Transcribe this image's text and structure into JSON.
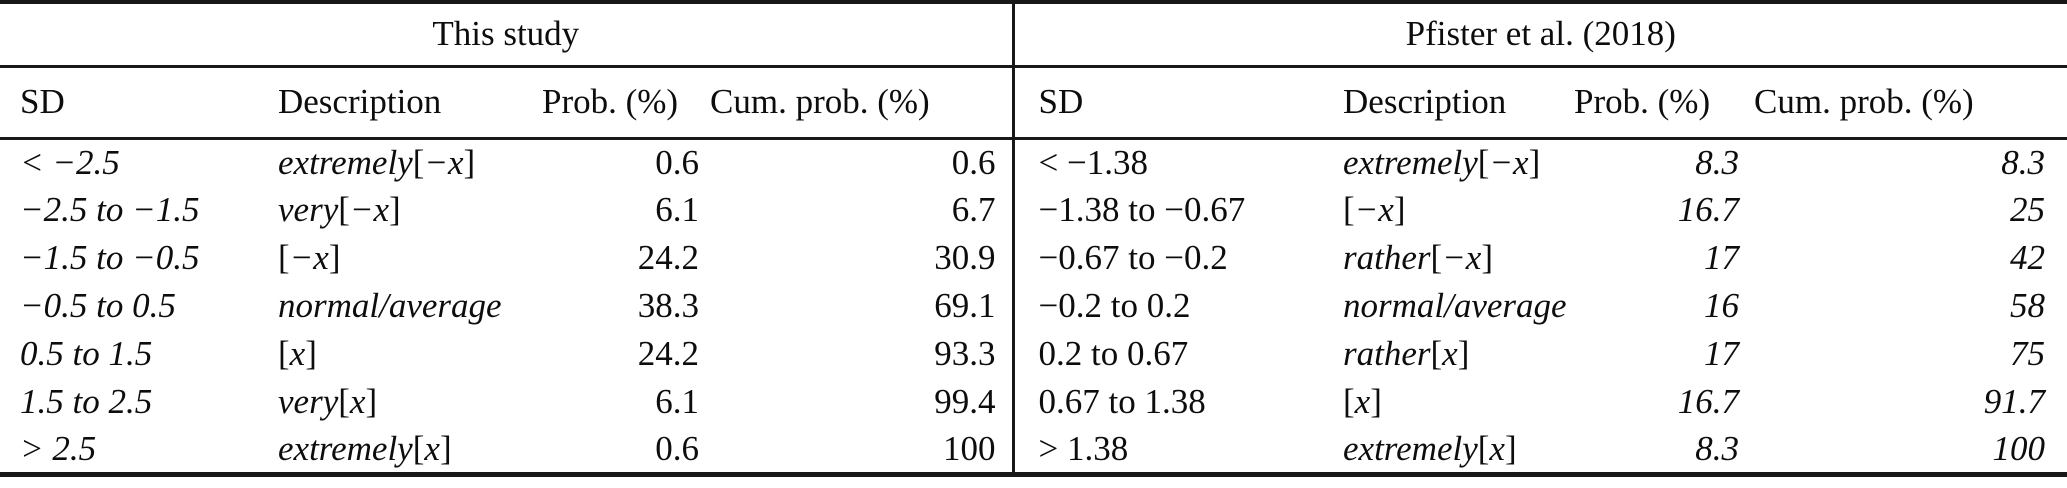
{
  "table": {
    "groups": [
      {
        "title": "This study",
        "columns": [
          "SD",
          "Description",
          "Prob. (%)",
          "Cum. prob. (%)"
        ]
      },
      {
        "title": "Pfister et al. (2018)",
        "columns": [
          "SD",
          "Description",
          "Prob. (%)",
          "Cum. prob. (%)"
        ]
      }
    ],
    "rows": [
      {
        "left": {
          "sd": "< −2.5",
          "desc": "extremely[−x]",
          "prob": "0.6",
          "cum": "0.6"
        },
        "right": {
          "sd": "< −1.38",
          "desc": "extremely[−x]",
          "prob": "8.3",
          "cum": "8.3"
        }
      },
      {
        "left": {
          "sd": "−2.5 to −1.5",
          "desc": "very[−x]",
          "prob": "6.1",
          "cum": "6.7"
        },
        "right": {
          "sd": "−1.38 to −0.67",
          "desc": "[−x]",
          "prob": "16.7",
          "cum": "25"
        }
      },
      {
        "left": {
          "sd": "−1.5 to −0.5",
          "desc": "[−x]",
          "prob": "24.2",
          "cum": "30.9"
        },
        "right": {
          "sd": "−0.67 to −0.2",
          "desc": "rather[−x]",
          "prob": "17",
          "cum": "42"
        }
      },
      {
        "left": {
          "sd": "−0.5 to 0.5",
          "desc": "normal/average",
          "prob": "38.3",
          "cum": "69.1"
        },
        "right": {
          "sd": "−0.2 to 0.2",
          "desc": "normal/average",
          "prob": "16",
          "cum": "58"
        }
      },
      {
        "left": {
          "sd": "0.5 to 1.5",
          "desc": "[x]",
          "prob": "24.2",
          "cum": "93.3"
        },
        "right": {
          "sd": "0.2 to 0.67",
          "desc": "rather[x]",
          "prob": "17",
          "cum": "75"
        }
      },
      {
        "left": {
          "sd": "1.5 to 2.5",
          "desc": "very[x]",
          "prob": "6.1",
          "cum": "99.4"
        },
        "right": {
          "sd": "0.67 to 1.38",
          "desc": "[x]",
          "prob": "16.7",
          "cum": "91.7"
        }
      },
      {
        "left": {
          "sd": "> 2.5",
          "desc": "extremely[x]",
          "prob": "0.6",
          "cum": "100"
        },
        "right": {
          "sd": "> 1.38",
          "desc": "extremely[x]",
          "prob": "8.3",
          "cum": "100"
        }
      }
    ]
  },
  "colors": {
    "text": "#0d0d0d",
    "rule": "#181818",
    "background": "#ffffff"
  }
}
